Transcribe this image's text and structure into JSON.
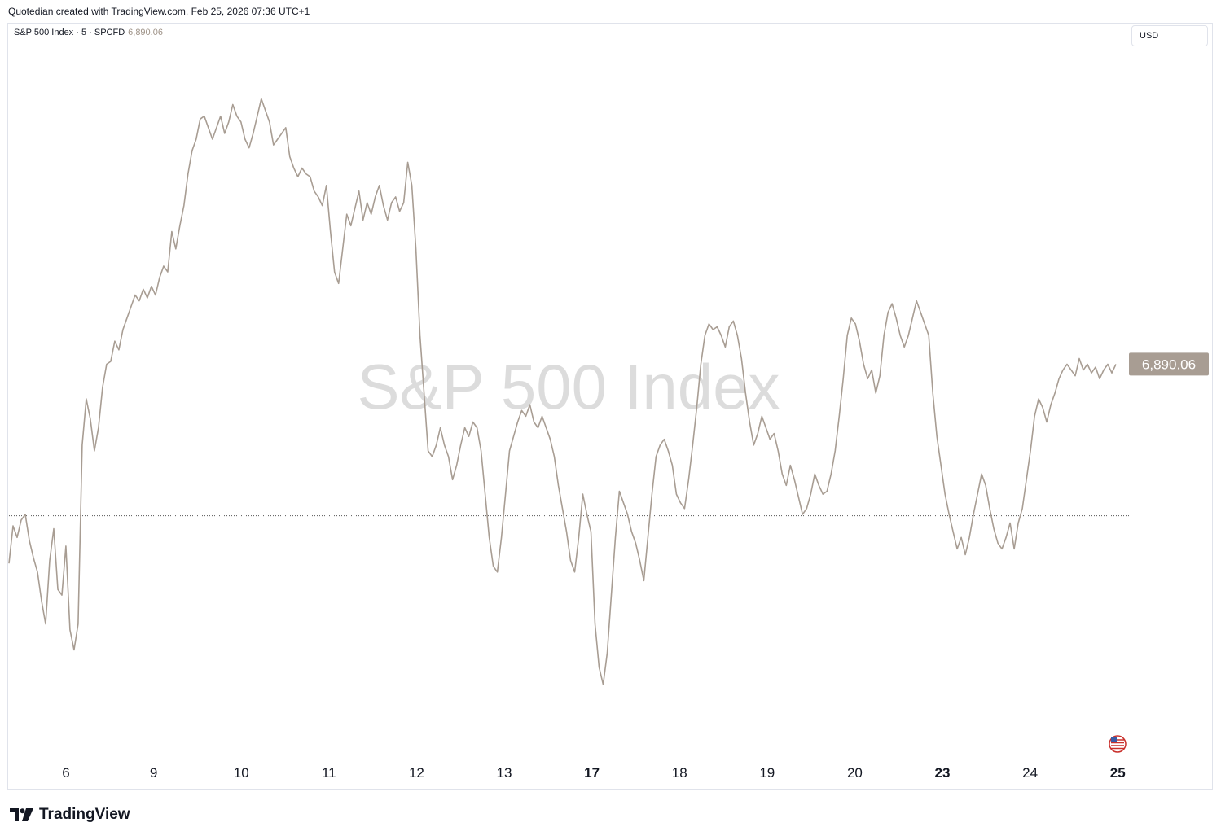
{
  "header": {
    "caption": "Quotedian created with TradingView.com, Feb 25, 2026 07:36 UTC+1"
  },
  "legend": {
    "symbol": "S&P 500 Index · 5 · SPCFD",
    "last_price": "6,890.06"
  },
  "currency": "USD",
  "watermark": "S&P 500 Index",
  "footer": {
    "brand": "TradingView"
  },
  "colors": {
    "line": "#a89d93",
    "price_tag_bg": "#a89d93",
    "price_tag_text": "#ffffff",
    "watermark": "#dcdcdc",
    "reference_line": "#555555"
  },
  "icons": {
    "footer_logo": "tradingview-logo-icon",
    "flag": "us-flag-icon"
  },
  "chart_data": {
    "type": "line",
    "title": "",
    "xlabel": "",
    "ylabel": "",
    "ylim": [
      6751,
      7008
    ],
    "grid": false,
    "y_ticks": [
      "6,760.00",
      "6,780.00",
      "6,800.00",
      "6,820.00",
      "6,840.00",
      "6,860.00",
      "6,880.00",
      "6,900.00",
      "6,920.00",
      "6,940.00",
      "6,960.00",
      "6,980.00",
      "7,000.00"
    ],
    "x_ticks": [
      {
        "label": "6",
        "bold": false
      },
      {
        "label": "9",
        "bold": false
      },
      {
        "label": "10",
        "bold": false
      },
      {
        "label": "11",
        "bold": false
      },
      {
        "label": "12",
        "bold": false
      },
      {
        "label": "13",
        "bold": false
      },
      {
        "label": "17",
        "bold": true
      },
      {
        "label": "18",
        "bold": false
      },
      {
        "label": "19",
        "bold": false
      },
      {
        "label": "20",
        "bold": false
      },
      {
        "label": "23",
        "bold": true
      },
      {
        "label": "24",
        "bold": false
      },
      {
        "label": "25",
        "bold": true
      }
    ],
    "last_value": 6890.06,
    "last_value_label": "6,890.06",
    "reference_value": 6837.5,
    "series": [
      {
        "values": [
          6821,
          6834,
          6830,
          6836,
          6838,
          6829,
          6823,
          6818,
          6808,
          6800,
          6822,
          6833,
          6812,
          6810,
          6827,
          6798,
          6791,
          6800,
          6862,
          6878,
          6871,
          6860,
          6868,
          6882,
          6890,
          6891,
          6898,
          6895,
          6902,
          6906,
          6910,
          6914,
          6912,
          6916,
          6913,
          6917,
          6914,
          6920,
          6924,
          6922,
          6936,
          6930,
          6938,
          6945,
          6956,
          6964,
          6968,
          6975,
          6976,
          6972,
          6968,
          6972,
          6976,
          6970,
          6974,
          6980,
          6976,
          6974,
          6968,
          6965,
          6970,
          6976,
          6982,
          6978,
          6974,
          6966,
          6968,
          6970,
          6972,
          6962,
          6958,
          6955,
          6958,
          6956,
          6955,
          6950,
          6948,
          6945,
          6952,
          6936,
          6922,
          6918,
          6930,
          6942,
          6938,
          6944,
          6950,
          6940,
          6946,
          6942,
          6948,
          6952,
          6945,
          6940,
          6946,
          6948,
          6943,
          6946,
          6960,
          6952,
          6930,
          6900,
          6880,
          6860,
          6858,
          6862,
          6868,
          6862,
          6858,
          6850,
          6855,
          6862,
          6868,
          6865,
          6870,
          6868,
          6860,
          6845,
          6830,
          6820,
          6818,
          6830,
          6845,
          6860,
          6865,
          6870,
          6874,
          6872,
          6876,
          6870,
          6868,
          6872,
          6868,
          6864,
          6858,
          6848,
          6840,
          6832,
          6822,
          6818,
          6830,
          6845,
          6838,
          6832,
          6800,
          6785,
          6779,
          6790,
          6810,
          6830,
          6846,
          6842,
          6838,
          6832,
          6828,
          6822,
          6815,
          6830,
          6845,
          6858,
          6862,
          6864,
          6860,
          6855,
          6845,
          6842,
          6840,
          6850,
          6862,
          6875,
          6890,
          6900,
          6904,
          6902,
          6903,
          6900,
          6896,
          6903,
          6905,
          6900,
          6892,
          6880,
          6870,
          6862,
          6866,
          6872,
          6868,
          6864,
          6866,
          6860,
          6852,
          6848,
          6855,
          6850,
          6844,
          6838,
          6840,
          6845,
          6852,
          6848,
          6845,
          6846,
          6852,
          6860,
          6872,
          6885,
          6900,
          6906,
          6904,
          6898,
          6890,
          6885,
          6888,
          6880,
          6886,
          6900,
          6908,
          6911,
          6906,
          6900,
          6896,
          6900,
          6906,
          6912,
          6908,
          6904,
          6900,
          6880,
          6865,
          6855,
          6845,
          6838,
          6832,
          6826,
          6830,
          6824,
          6830,
          6838,
          6845,
          6852,
          6848,
          6840,
          6833,
          6828,
          6826,
          6830,
          6835,
          6826,
          6835,
          6840,
          6850,
          6860,
          6872,
          6878,
          6875,
          6870,
          6876,
          6880,
          6885,
          6888,
          6890,
          6888,
          6886,
          6892,
          6888,
          6890,
          6887,
          6889,
          6885,
          6888,
          6890,
          6887,
          6890
        ]
      }
    ]
  }
}
